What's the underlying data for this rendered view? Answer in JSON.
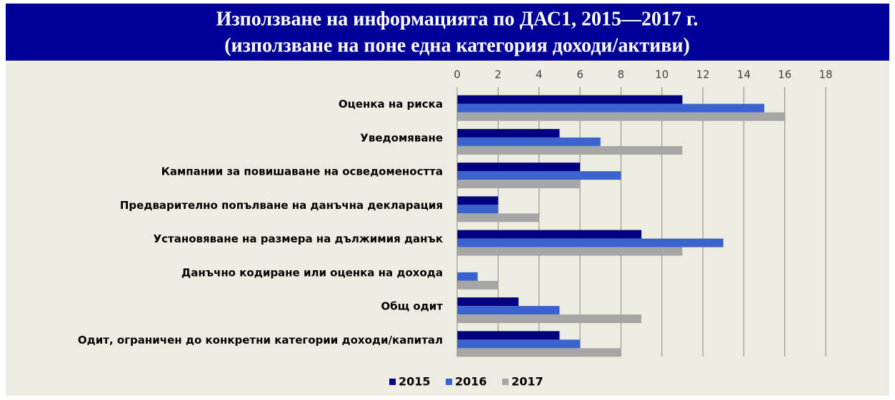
{
  "chart_data": {
    "type": "bar",
    "orientation": "horizontal",
    "title": "Използване на информацията по ДАС1, 2015—2017 г.",
    "subtitle": "(използване на поне една категория доходи/активи)",
    "categories": [
      "Оценка на риска",
      "Уведомяване",
      "Кампании за повишаване на осведомеността",
      "Предварително попълване на данъчна декларация",
      "Установяване на размера на дължимия данък",
      "Данъчно кодиране или оценка на дохода",
      "Общ одит",
      "Одит, ограничен до конкретни категории доходи/капитал"
    ],
    "series": [
      {
        "name": "2015",
        "color": "#000080",
        "values": [
          11,
          5,
          6,
          2,
          9,
          0,
          3,
          5
        ]
      },
      {
        "name": "2016",
        "color": "#3b63d0",
        "values": [
          15,
          7,
          8,
          2,
          13,
          1,
          5,
          6
        ]
      },
      {
        "name": "2017",
        "color": "#a6a6a6",
        "values": [
          16,
          11,
          6,
          4,
          11,
          2,
          9,
          8
        ]
      }
    ],
    "xlim": [
      0,
      18
    ],
    "xticks": [
      0,
      2,
      4,
      6,
      8,
      10,
      12,
      14,
      16,
      18
    ],
    "grid": true,
    "legend": "bottom"
  }
}
